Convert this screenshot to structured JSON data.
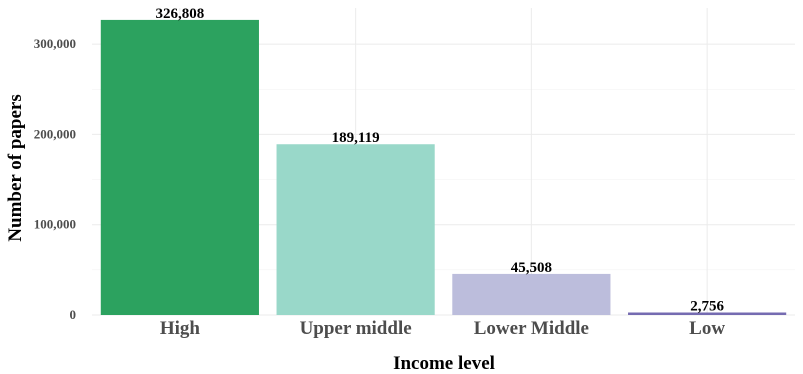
{
  "chart_data": {
    "type": "bar",
    "title": "",
    "xlabel": "Income level",
    "ylabel": "Number of papers",
    "categories": [
      "High",
      "Upper middle",
      "Lower Middle",
      "Low"
    ],
    "values": [
      326808,
      189119,
      45508,
      2756
    ],
    "value_labels": [
      "326,808",
      "189,119",
      "45,508",
      "2,756"
    ],
    "colors": [
      "#2ca25f",
      "#99d8c9",
      "#bcbddc",
      "#756bb1"
    ],
    "ylim": [
      0,
      340000
    ],
    "yticks": [
      0,
      100000,
      200000,
      300000
    ],
    "ytick_labels": [
      "0",
      "100,000",
      "200,000",
      "300,000"
    ],
    "grid": true,
    "legend": "none"
  }
}
